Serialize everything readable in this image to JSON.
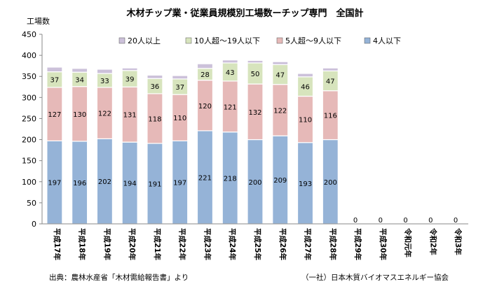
{
  "chart_data": {
    "type": "bar",
    "stacked": true,
    "title": "木材チップ業・従業員規模別工場数ーチップ専門　全国計",
    "ylabel": "工場数",
    "xlabel": "",
    "ylim": [
      0,
      450
    ],
    "yticks": [
      0,
      50,
      100,
      150,
      200,
      250,
      300,
      350,
      400,
      450
    ],
    "grid": false,
    "legend_position": "top",
    "categories": [
      "平成17年",
      "平成18年",
      "平成19年",
      "平成20年",
      "平成21年",
      "平成22年",
      "平成23年",
      "平成24年",
      "平成25年",
      "平成26年",
      "平成27年",
      "平成28年",
      "平成29年",
      "平成30年",
      "令和元年",
      "令和2年",
      "令和3年"
    ],
    "series": [
      {
        "name": "4人以下",
        "color": "#95b3d7",
        "values": [
          197,
          196,
          202,
          194,
          191,
          197,
          221,
          218,
          200,
          209,
          193,
          200,
          0,
          0,
          0,
          0,
          0
        ]
      },
      {
        "name": "5人超〜9人以下",
        "color": "#e6b9b8",
        "values": [
          127,
          130,
          122,
          131,
          118,
          110,
          120,
          121,
          132,
          122,
          110,
          116,
          0,
          0,
          0,
          0,
          0
        ]
      },
      {
        "name": "10人超〜19人以下",
        "color": "#d7e4bd",
        "values": [
          37,
          34,
          33,
          39,
          36,
          37,
          28,
          43,
          50,
          47,
          46,
          47,
          0,
          0,
          0,
          0,
          0
        ]
      },
      {
        "name": "20人以上",
        "color": "#ccc1da",
        "values": [
          11,
          9,
          10,
          6,
          8,
          8,
          11,
          7,
          6,
          7,
          8,
          7,
          0,
          0,
          0,
          0,
          0
        ]
      }
    ],
    "bar_labels_shown": [
      "4人以下",
      "5人超〜9人以下",
      "10人超〜19人以下"
    ],
    "zero_label": "0",
    "legend_order": [
      "20人以上",
      "10人超〜19人以下",
      "5人超〜9人以下",
      "4人以下"
    ]
  },
  "footer": {
    "source_left": "出典：農林水産省「木材需給報告書」より",
    "source_right": "（一社）日本木質バイオマスエネルギー協会"
  }
}
